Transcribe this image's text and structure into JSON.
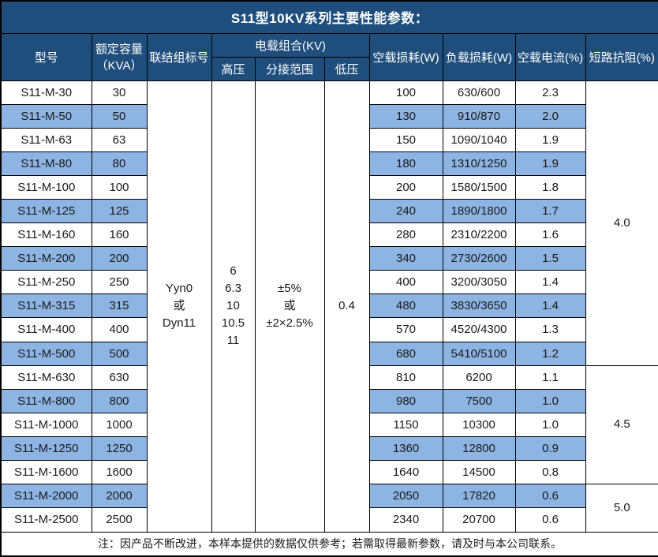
{
  "title": "S11型10KV系列主要性能参数：",
  "header": {
    "model": "型号",
    "capacity_line1": "额定容量",
    "capacity_line2": "（KVA）",
    "connection": "联结组标号",
    "voltage_group": "电载组合(KV)",
    "hv": "高压",
    "tap_range": "分接范围",
    "lv": "低压",
    "no_load_loss": "空载损耗(W)",
    "load_loss": "负载损耗(W)",
    "no_load_current": "空载电流(%)",
    "impedance": "短路抗阻(%)"
  },
  "merged": {
    "connection_lines": [
      "Yyn0",
      "或",
      "Dyn11"
    ],
    "hv_lines": [
      "6",
      "6.3",
      "10",
      "10.5",
      "11"
    ],
    "tap_lines": [
      "±5%",
      "或",
      "±2×2.5%"
    ],
    "lv": "0.4"
  },
  "impedance_groups": [
    {
      "value": "4.0",
      "rows": 12
    },
    {
      "value": "4.5",
      "rows": 5
    },
    {
      "value": "5.0",
      "rows": 2
    }
  ],
  "rows": [
    {
      "model": "S11-M-30",
      "kva": "30",
      "no_load_loss": "100",
      "load_loss": "630/600",
      "no_load_current": "2.3",
      "shaded": false
    },
    {
      "model": "S11-M-50",
      "kva": "50",
      "no_load_loss": "130",
      "load_loss": "910/870",
      "no_load_current": "2.0",
      "shaded": true
    },
    {
      "model": "S11-M-63",
      "kva": "63",
      "no_load_loss": "150",
      "load_loss": "1090/1040",
      "no_load_current": "1.9",
      "shaded": false
    },
    {
      "model": "S11-M-80",
      "kva": "80",
      "no_load_loss": "180",
      "load_loss": "1310/1250",
      "no_load_current": "1.9",
      "shaded": true
    },
    {
      "model": "S11-M-100",
      "kva": "100",
      "no_load_loss": "200",
      "load_loss": "1580/1500",
      "no_load_current": "1.8",
      "shaded": false
    },
    {
      "model": "S11-M-125",
      "kva": "125",
      "no_load_loss": "240",
      "load_loss": "1890/1800",
      "no_load_current": "1.7",
      "shaded": true
    },
    {
      "model": "S11-M-160",
      "kva": "160",
      "no_load_loss": "280",
      "load_loss": "2310/2200",
      "no_load_current": "1.6",
      "shaded": false
    },
    {
      "model": "S11-M-200",
      "kva": "200",
      "no_load_loss": "340",
      "load_loss": "2730/2600",
      "no_load_current": "1.5",
      "shaded": true
    },
    {
      "model": "S11-M-250",
      "kva": "250",
      "no_load_loss": "400",
      "load_loss": "3200/3050",
      "no_load_current": "1.4",
      "shaded": false
    },
    {
      "model": "S11-M-315",
      "kva": "315",
      "no_load_loss": "480",
      "load_loss": "3830/3650",
      "no_load_current": "1.4",
      "shaded": true
    },
    {
      "model": "S11-M-400",
      "kva": "400",
      "no_load_loss": "570",
      "load_loss": "4520/4300",
      "no_load_current": "1.3",
      "shaded": false
    },
    {
      "model": "S11-M-500",
      "kva": "500",
      "no_load_loss": "680",
      "load_loss": "5410/5100",
      "no_load_current": "1.2",
      "shaded": true
    },
    {
      "model": "S11-M-630",
      "kva": "630",
      "no_load_loss": "810",
      "load_loss": "6200",
      "no_load_current": "1.1",
      "shaded": false
    },
    {
      "model": "S11-M-800",
      "kva": "800",
      "no_load_loss": "980",
      "load_loss": "7500",
      "no_load_current": "1.0",
      "shaded": true
    },
    {
      "model": "S11-M-1000",
      "kva": "1000",
      "no_load_loss": "1150",
      "load_loss": "10300",
      "no_load_current": "1.0",
      "shaded": false
    },
    {
      "model": "S11-M-1250",
      "kva": "1250",
      "no_load_loss": "1360",
      "load_loss": "12800",
      "no_load_current": "0.9",
      "shaded": true
    },
    {
      "model": "S11-M-1600",
      "kva": "1600",
      "no_load_loss": "1640",
      "load_loss": "14500",
      "no_load_current": "0.8",
      "shaded": false
    },
    {
      "model": "S11-M-2000",
      "kva": "2000",
      "no_load_loss": "2050",
      "load_loss": "17820",
      "no_load_current": "0.6",
      "shaded": true
    },
    {
      "model": "S11-M-2500",
      "kva": "2500",
      "no_load_loss": "2340",
      "load_loss": "20700",
      "no_load_current": "0.6",
      "shaded": false
    }
  ],
  "note": "注：因产品不断改进，本样本提供的数据仅供参考；若需取得最新参数，请及时与本公司联系。",
  "colors": {
    "title_bg": "#1F4E7C",
    "header_bg": "#1F4E7C",
    "shaded_row_bg": "#8DB4E2",
    "border": "#000000",
    "header_text": "#FFFFFF",
    "body_text": "#1A1A1A"
  }
}
